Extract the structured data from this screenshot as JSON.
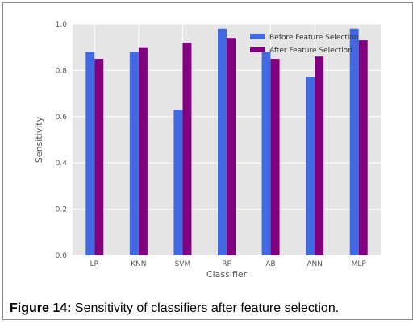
{
  "chart_data": {
    "type": "bar",
    "title": "",
    "xlabel": "Classifier",
    "ylabel": "Sensitivity",
    "categories": [
      "LR",
      "KNN",
      "SVM",
      "RF",
      "AB",
      "ANN",
      "MLP"
    ],
    "series": [
      {
        "name": "Before Feature Selection",
        "values": [
          0.88,
          0.88,
          0.63,
          0.98,
          0.88,
          0.77,
          0.98
        ],
        "color": "#4169e1"
      },
      {
        "name": "After Feature Selection",
        "values": [
          0.85,
          0.9,
          0.92,
          0.94,
          0.85,
          0.86,
          0.93
        ],
        "color": "#800080"
      }
    ],
    "ylim": [
      0,
      1.0
    ],
    "yticks": [
      "0.0",
      "0.2",
      "0.4",
      "0.6",
      "0.8",
      "1.0"
    ],
    "grid": true,
    "background": "#e5e5e5",
    "legend_position": "top-right"
  },
  "caption": {
    "label": "Figure 14:",
    "text": " Sensitivity of classifiers after feature selection."
  }
}
